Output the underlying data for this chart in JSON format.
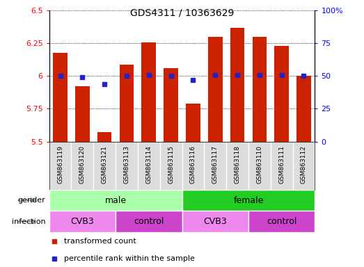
{
  "title": "GDS4311 / 10363629",
  "samples": [
    "GSM863119",
    "GSM863120",
    "GSM863121",
    "GSM863113",
    "GSM863114",
    "GSM863115",
    "GSM863116",
    "GSM863117",
    "GSM863118",
    "GSM863110",
    "GSM863111",
    "GSM863112"
  ],
  "transformed_count": [
    6.18,
    5.92,
    5.57,
    6.09,
    6.26,
    6.06,
    5.79,
    6.3,
    6.37,
    6.3,
    6.23,
    6.0
  ],
  "percentile_rank": [
    50,
    49,
    44,
    50,
    51,
    50,
    47,
    51,
    51,
    51,
    51,
    50
  ],
  "ylim_left": [
    5.5,
    6.5
  ],
  "ylim_right": [
    0,
    100
  ],
  "yticks_left": [
    5.5,
    5.75,
    6.0,
    6.25,
    6.5
  ],
  "yticks_right": [
    0,
    25,
    50,
    75,
    100
  ],
  "ytick_labels_left": [
    "5.5",
    "5.75",
    "6",
    "6.25",
    "6.5"
  ],
  "ytick_labels_right": [
    "0",
    "25",
    "50",
    "75",
    "100%"
  ],
  "bar_color": "#cc2200",
  "dot_color": "#2222cc",
  "gender_groups": [
    {
      "label": "male",
      "start": 0,
      "end": 5,
      "color": "#aaffaa"
    },
    {
      "label": "female",
      "start": 6,
      "end": 11,
      "color": "#22cc22"
    }
  ],
  "infection_groups": [
    {
      "label": "CVB3",
      "start": 0,
      "end": 2,
      "color": "#ee88ee"
    },
    {
      "label": "control",
      "start": 3,
      "end": 5,
      "color": "#cc44cc"
    },
    {
      "label": "CVB3",
      "start": 6,
      "end": 8,
      "color": "#ee88ee"
    },
    {
      "label": "control",
      "start": 9,
      "end": 11,
      "color": "#cc44cc"
    }
  ],
  "gender_label": "gender",
  "infection_label": "infection",
  "legend_tc": "transformed count",
  "legend_pr": "percentile rank within the sample",
  "bar_bottom": 5.5
}
